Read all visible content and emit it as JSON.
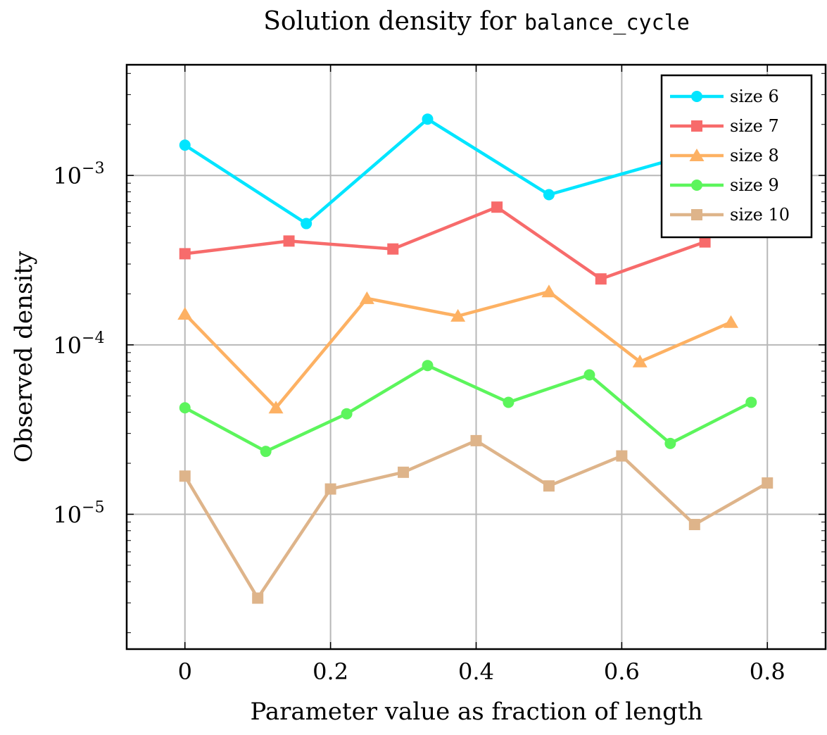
{
  "chart_data": {
    "type": "line",
    "title_prefix": "Solution density for ",
    "title_code": "balance_cycle",
    "xlabel": "Parameter value as fraction of length",
    "ylabel": "Observed density",
    "y_scale": "log",
    "xlim": [
      -0.08,
      0.88
    ],
    "ylim": [
      1.6e-06,
      0.0045
    ],
    "grid": true,
    "legend_position": "top-right",
    "x_ticks": [
      {
        "value": 0,
        "label": "0"
      },
      {
        "value": 0.2,
        "label": "0.2"
      },
      {
        "value": 0.4,
        "label": "0.4"
      },
      {
        "value": 0.6,
        "label": "0.6"
      },
      {
        "value": 0.8,
        "label": "0.8"
      }
    ],
    "y_ticks": [
      {
        "value": 0.001,
        "base": "10",
        "exp": "−3"
      },
      {
        "value": 0.0001,
        "base": "10",
        "exp": "−4"
      },
      {
        "value": 1e-05,
        "base": "10",
        "exp": "−5"
      }
    ],
    "series": [
      {
        "name": "size 6",
        "color": "#00e5ff",
        "marker": "circle",
        "x": [
          0,
          0.1667,
          0.3333,
          0.5,
          0.6667
        ],
        "y": [
          0.00151,
          0.00052,
          0.00215,
          0.00077,
          0.00123
        ]
      },
      {
        "name": "size 7",
        "color": "#f76b6b",
        "marker": "square",
        "x": [
          0,
          0.1429,
          0.2857,
          0.4286,
          0.5714,
          0.7143
        ],
        "y": [
          0.000345,
          0.00041,
          0.000368,
          0.00065,
          0.000245,
          0.000405
        ]
      },
      {
        "name": "size 8",
        "color": "#fdb163",
        "marker": "triangle",
        "x": [
          0,
          0.125,
          0.25,
          0.375,
          0.5,
          0.625,
          0.75
        ],
        "y": [
          0.000152,
          4.25e-05,
          0.000188,
          0.000148,
          0.000206,
          7.95e-05,
          0.000136
        ]
      },
      {
        "name": "size 9",
        "color": "#5cf55c",
        "marker": "circle",
        "x": [
          0,
          0.1111,
          0.2222,
          0.3333,
          0.4444,
          0.5556,
          0.6667,
          0.7778
        ],
        "y": [
          4.25e-05,
          2.35e-05,
          3.92e-05,
          7.55e-05,
          4.58e-05,
          6.65e-05,
          2.62e-05,
          4.58e-05
        ]
      },
      {
        "name": "size 10",
        "color": "#deb48a",
        "marker": "square",
        "x": [
          0,
          0.1,
          0.2,
          0.3,
          0.4,
          0.5,
          0.6,
          0.7,
          0.8
        ],
        "y": [
          1.68e-05,
          3.2e-06,
          1.41e-05,
          1.77e-05,
          2.72e-05,
          1.47e-05,
          2.21e-05,
          8.7e-06,
          1.53e-05
        ]
      }
    ]
  }
}
